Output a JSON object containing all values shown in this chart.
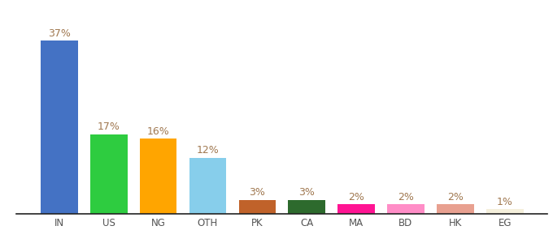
{
  "categories": [
    "IN",
    "US",
    "NG",
    "OTH",
    "PK",
    "CA",
    "MA",
    "BD",
    "HK",
    "EG"
  ],
  "values": [
    37,
    17,
    16,
    12,
    3,
    3,
    2,
    2,
    2,
    1
  ],
  "bar_colors": [
    "#4472C4",
    "#2ECC40",
    "#FFA500",
    "#87CEEB",
    "#C0622A",
    "#2D6A2D",
    "#FF1493",
    "#FF8DC7",
    "#E8A090",
    "#F5F0DC"
  ],
  "labels": [
    "37%",
    "17%",
    "16%",
    "12%",
    "3%",
    "3%",
    "2%",
    "2%",
    "2%",
    "1%"
  ],
  "label_color": "#A07850",
  "ylim": [
    0,
    42
  ],
  "background_color": "#ffffff",
  "bar_width": 0.75,
  "label_fontsize": 9,
  "tick_fontsize": 8.5
}
